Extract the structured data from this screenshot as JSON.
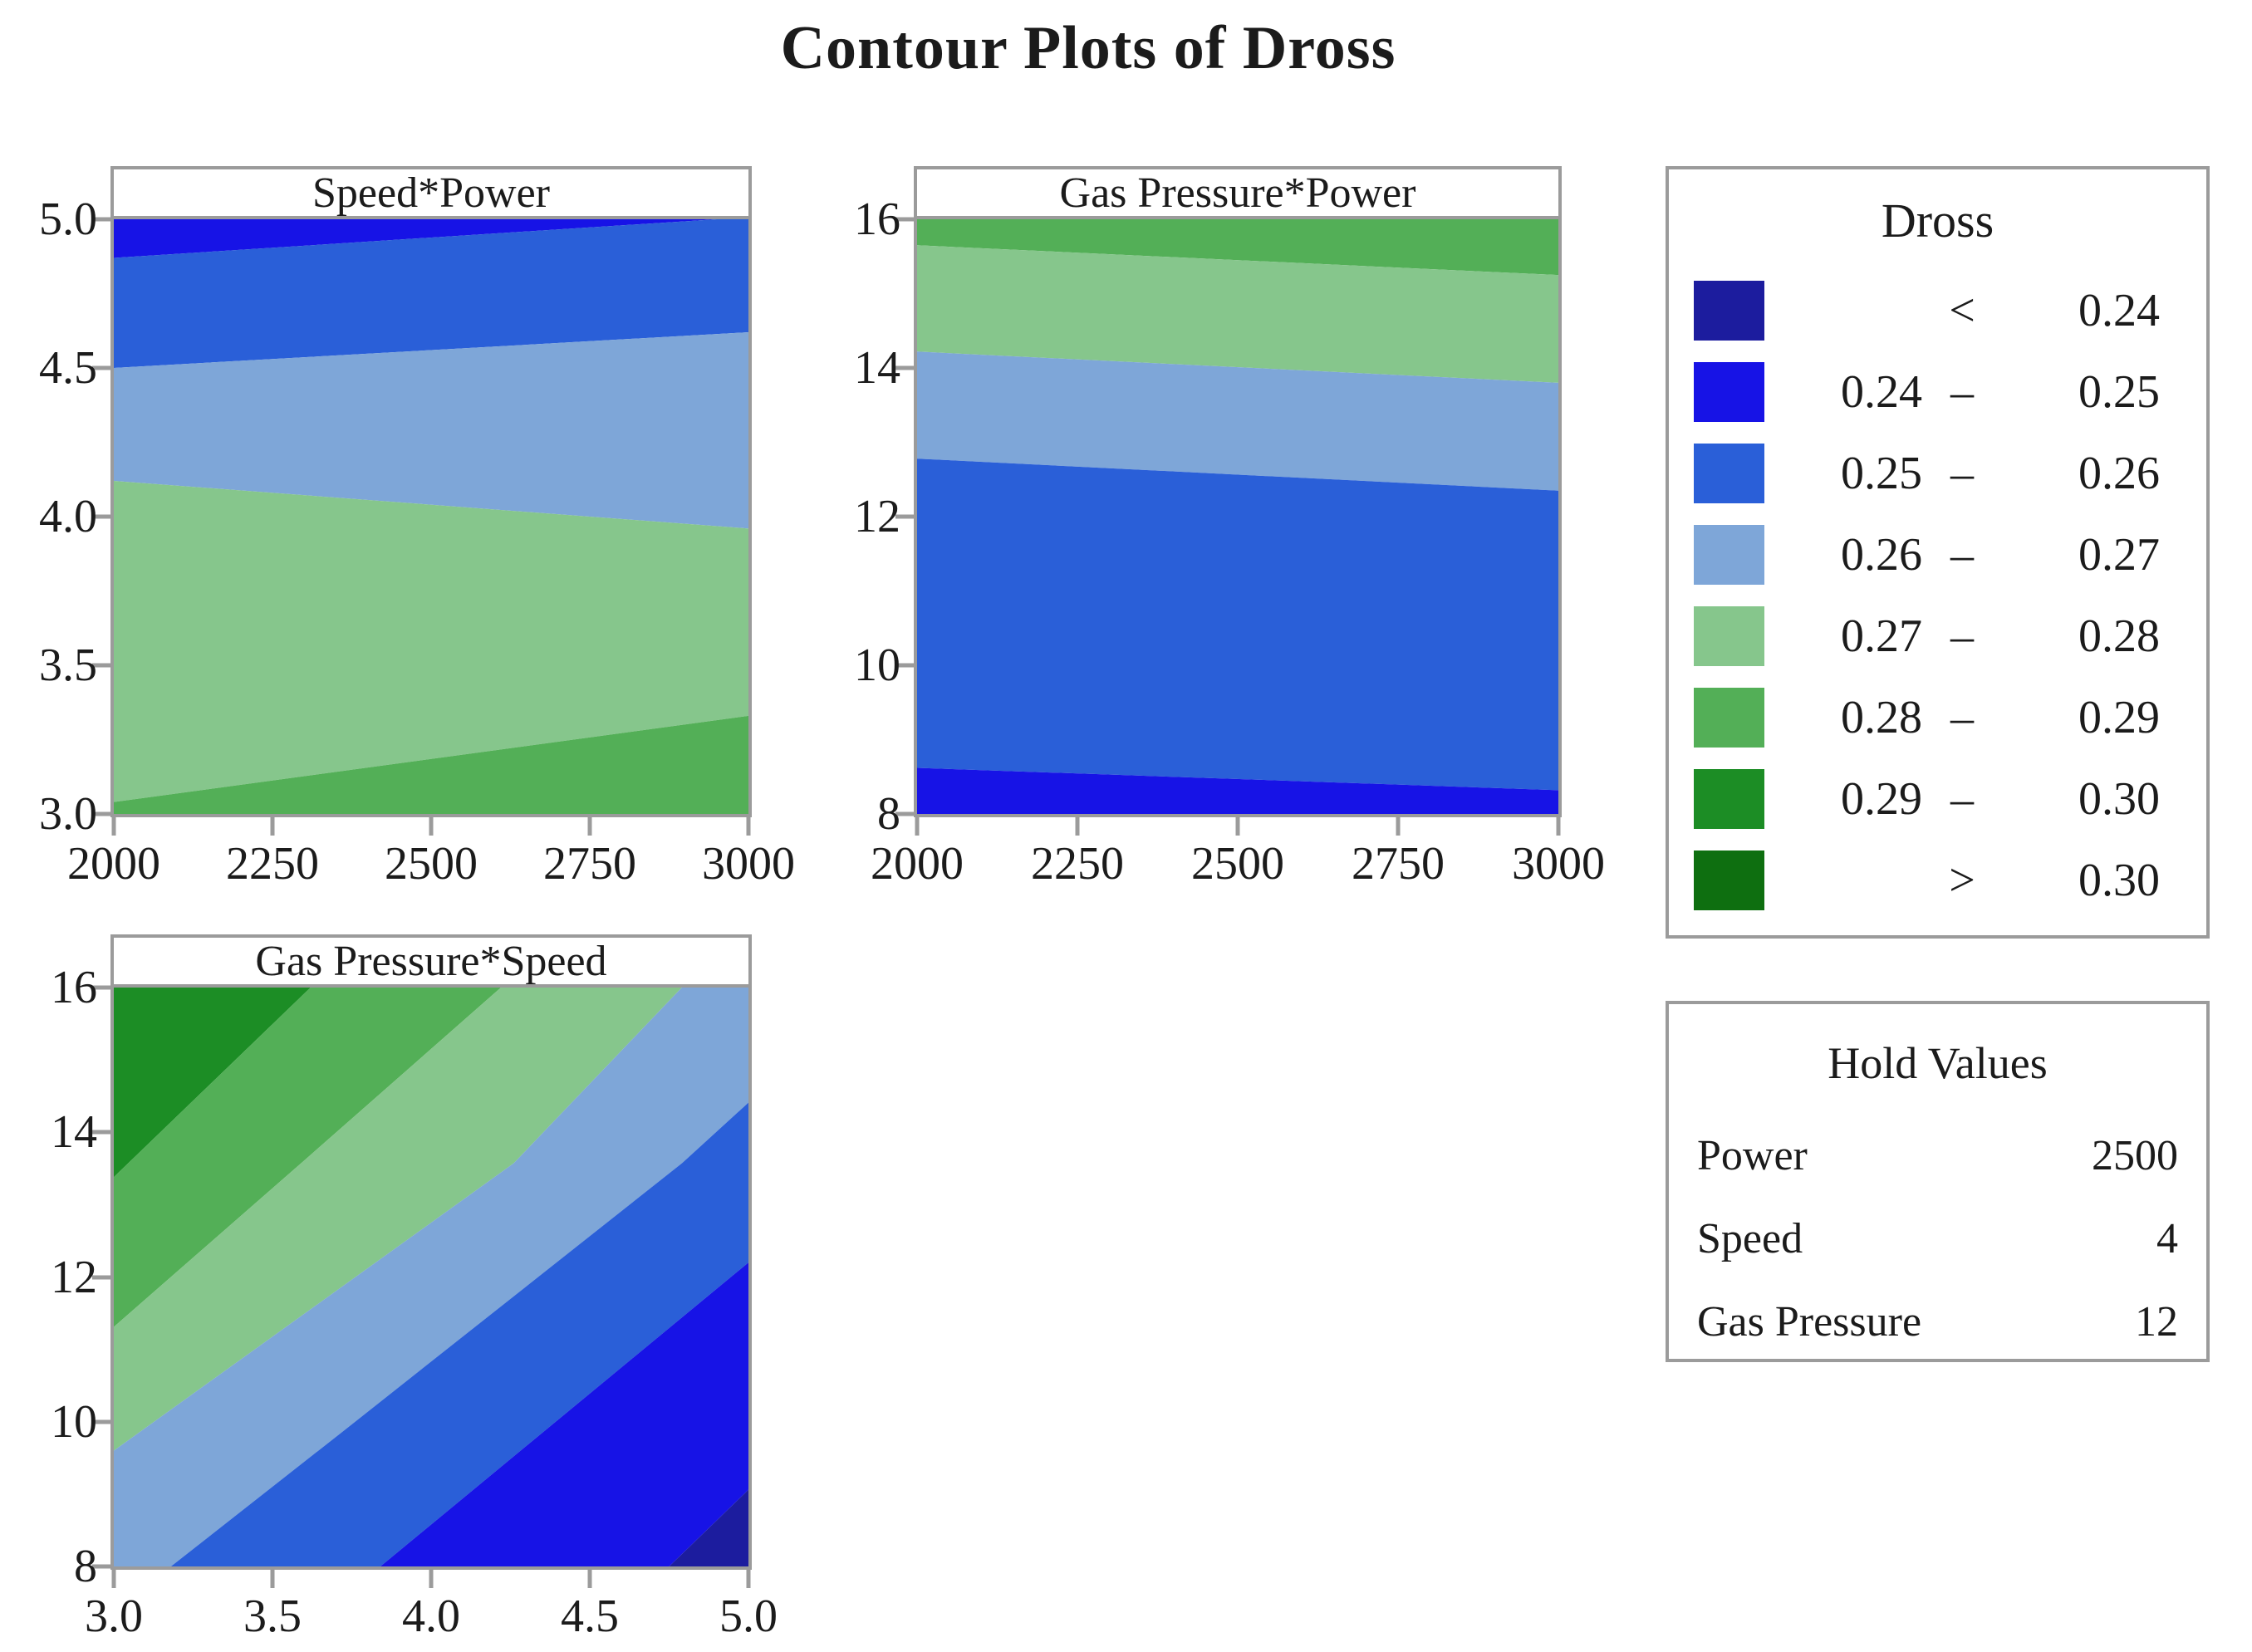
{
  "page_title": "Contour Plots of Dross",
  "palette": {
    "lt024": "#1c1c9e",
    "b024_025": "#1713e6",
    "b025_026": "#2a5fd8",
    "b026_027": "#7ea6d8",
    "b027_028": "#86c68c",
    "b028_029": "#53af57",
    "b029_030": "#1c8d25",
    "gt030": "#0e6f10",
    "frame": "#9b9b9b",
    "text": "#1b1b1b"
  },
  "chart_data": {
    "type": "heatmap",
    "subtype": "filled-contour",
    "response": "Dross",
    "levels": [
      0.24,
      0.25,
      0.26,
      0.27,
      0.28,
      0.29,
      0.3
    ],
    "plots": [
      {
        "title": "Speed*Power",
        "x_var": "Power",
        "y_var": "Speed",
        "xlim": [
          2000,
          3000
        ],
        "ylim": [
          3.0,
          5.0
        ],
        "xticks": [
          "2000",
          "2250",
          "2500",
          "2750",
          "3000"
        ],
        "yticks": [
          "5.0",
          "4.5",
          "4.0",
          "3.5",
          "3.0"
        ],
        "bands": [
          {
            "level": "0.24-0.25",
            "color": "b024_025",
            "points": [
              [
                2000,
                5.0
              ],
              [
                2950,
                5.0
              ],
              [
                2000,
                4.87
              ]
            ]
          },
          {
            "level": "0.25-0.26",
            "color": "b025_026",
            "points": [
              [
                2000,
                4.87
              ],
              [
                2950,
                5.0
              ],
              [
                3000,
                5.0
              ],
              [
                3000,
                4.62
              ],
              [
                2000,
                4.5
              ]
            ]
          },
          {
            "level": "0.26-0.27",
            "color": "b026_027",
            "points": [
              [
                2000,
                4.5
              ],
              [
                3000,
                4.62
              ],
              [
                3000,
                3.96
              ],
              [
                2000,
                4.12
              ]
            ]
          },
          {
            "level": "0.27-0.28",
            "color": "b027_028",
            "points": [
              [
                2000,
                4.12
              ],
              [
                3000,
                3.96
              ],
              [
                3000,
                3.33
              ],
              [
                2000,
                3.04
              ]
            ]
          },
          {
            "level": "0.28-0.29",
            "color": "b028_029",
            "points": [
              [
                2000,
                3.04
              ],
              [
                3000,
                3.33
              ],
              [
                3000,
                3.0
              ],
              [
                2000,
                3.0
              ]
            ]
          }
        ]
      },
      {
        "title": "Gas Pressure*Power",
        "x_var": "Power",
        "y_var": "Gas Pressure",
        "xlim": [
          2000,
          3000
        ],
        "ylim": [
          8,
          16
        ],
        "xticks": [
          "2000",
          "2250",
          "2500",
          "2750",
          "3000"
        ],
        "yticks": [
          "16",
          "14",
          "12",
          "10",
          "8"
        ],
        "bands": [
          {
            "level": "0.28-0.29",
            "color": "b028_029",
            "points": [
              [
                2000,
                16
              ],
              [
                3000,
                16
              ],
              [
                3000,
                15.25
              ],
              [
                2000,
                15.65
              ]
            ]
          },
          {
            "level": "0.27-0.28",
            "color": "b027_028",
            "points": [
              [
                2000,
                15.65
              ],
              [
                3000,
                15.25
              ],
              [
                3000,
                13.8
              ],
              [
                2000,
                14.22
              ]
            ]
          },
          {
            "level": "0.26-0.27",
            "color": "b026_027",
            "points": [
              [
                2000,
                14.22
              ],
              [
                3000,
                13.8
              ],
              [
                3000,
                12.35
              ],
              [
                2000,
                12.78
              ]
            ]
          },
          {
            "level": "0.25-0.26",
            "color": "b025_026",
            "points": [
              [
                2000,
                12.78
              ],
              [
                3000,
                12.35
              ],
              [
                3000,
                8.32
              ],
              [
                2000,
                8.62
              ]
            ]
          },
          {
            "level": "0.24-0.25",
            "color": "b024_025",
            "points": [
              [
                2000,
                8.62
              ],
              [
                3000,
                8.32
              ],
              [
                3000,
                8
              ],
              [
                2000,
                8
              ]
            ]
          }
        ]
      },
      {
        "title": "Gas Pressure*Speed",
        "x_var": "Speed",
        "y_var": "Gas Pressure",
        "xlim": [
          3.0,
          5.0
        ],
        "ylim": [
          8,
          16
        ],
        "xticks": [
          "3.0",
          "3.5",
          "4.0",
          "4.5",
          "5.0"
        ],
        "yticks": [
          "16",
          "14",
          "12",
          "10",
          "8"
        ],
        "bands": [
          {
            "level": "0.29-0.30",
            "color": "b029_030",
            "points": [
              [
                3.0,
                16
              ],
              [
                3.62,
                16
              ],
              [
                3.0,
                13.38
              ]
            ]
          },
          {
            "level": "0.28-0.29",
            "color": "b028_029",
            "points": [
              [
                3.0,
                13.38
              ],
              [
                3.62,
                16
              ],
              [
                4.22,
                16
              ],
              [
                3.59,
                13.57
              ],
              [
                3.0,
                11.31
              ]
            ]
          },
          {
            "level": "0.27-0.28",
            "color": "b027_028",
            "points": [
              [
                3.0,
                11.31
              ],
              [
                3.59,
                13.57
              ],
              [
                4.22,
                16
              ],
              [
                4.79,
                16
              ],
              [
                4.26,
                13.57
              ],
              [
                3.0,
                9.6
              ]
            ]
          },
          {
            "level": "0.26-0.27",
            "color": "b026_027",
            "points": [
              [
                3.0,
                9.6
              ],
              [
                4.26,
                13.57
              ],
              [
                4.79,
                16
              ],
              [
                5.0,
                16
              ],
              [
                5.0,
                14.41
              ],
              [
                4.79,
                13.57
              ],
              [
                3.72,
                9.86
              ],
              [
                3.18,
                8
              ],
              [
                3.0,
                8
              ]
            ]
          },
          {
            "level": "0.25-0.26",
            "color": "b025_026",
            "points": [
              [
                3.18,
                8
              ],
              [
                3.72,
                9.86
              ],
              [
                4.79,
                13.57
              ],
              [
                5.0,
                14.41
              ],
              [
                5.0,
                12.2
              ],
              [
                3.84,
                8
              ]
            ]
          },
          {
            "level": "0.24-0.25",
            "color": "b024_025",
            "points": [
              [
                3.84,
                8
              ],
              [
                5.0,
                12.2
              ],
              [
                5.0,
                9.06
              ],
              [
                4.75,
                8
              ]
            ]
          },
          {
            "level": "<0.24",
            "color": "lt024",
            "points": [
              [
                4.75,
                8
              ],
              [
                5.0,
                9.06
              ],
              [
                5.0,
                8
              ]
            ]
          }
        ]
      }
    ]
  },
  "legend": {
    "title": "Dross",
    "rows": [
      {
        "color": "lt024",
        "left": "",
        "mid": "<",
        "right": "0.24"
      },
      {
        "color": "b024_025",
        "left": "0.24",
        "mid": "–",
        "right": "0.25"
      },
      {
        "color": "b025_026",
        "left": "0.25",
        "mid": "–",
        "right": "0.26"
      },
      {
        "color": "b026_027",
        "left": "0.26",
        "mid": "–",
        "right": "0.27"
      },
      {
        "color": "b027_028",
        "left": "0.27",
        "mid": "–",
        "right": "0.28"
      },
      {
        "color": "b028_029",
        "left": "0.28",
        "mid": "–",
        "right": "0.29"
      },
      {
        "color": "b029_030",
        "left": "0.29",
        "mid": "–",
        "right": "0.30"
      },
      {
        "color": "gt030",
        "left": "",
        "mid": ">",
        "right": "0.30"
      }
    ]
  },
  "hold_values": {
    "title": "Hold Values",
    "rows": [
      {
        "label": "Power",
        "value": "2500"
      },
      {
        "label": "Speed",
        "value": "4"
      },
      {
        "label": "Gas Pressure",
        "value": "12"
      }
    ]
  }
}
